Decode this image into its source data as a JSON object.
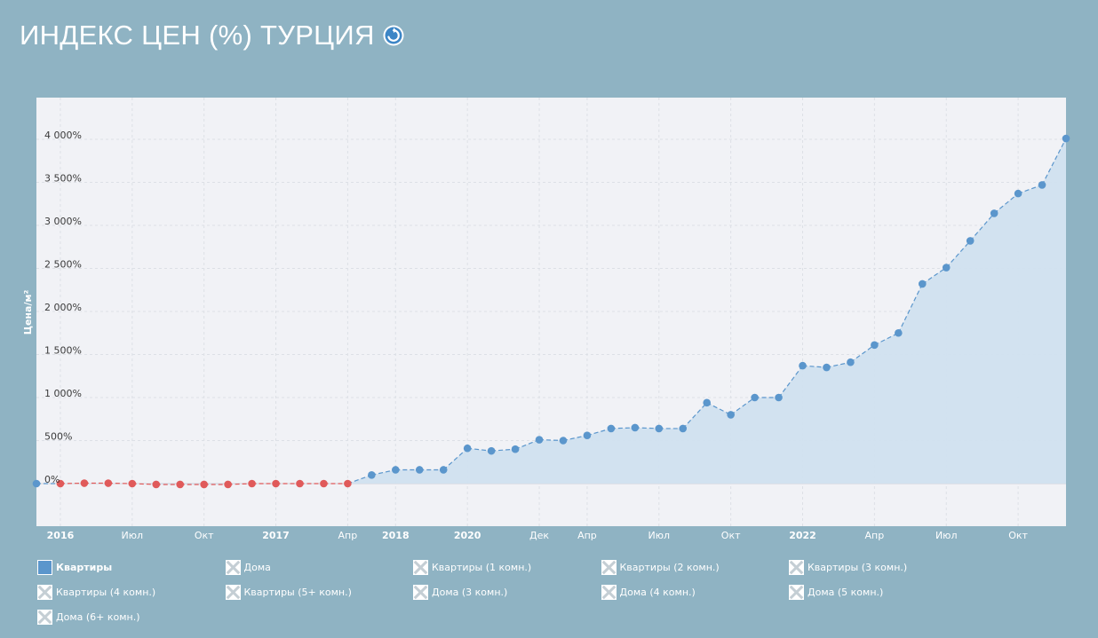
{
  "header": {
    "title": "ИНДЕКС ЦЕН (%) ТУРЦИЯ",
    "refresh_icon": "refresh-icon"
  },
  "chart_data": {
    "type": "line",
    "title": "ИНДЕКС ЦЕН (%) ТУРЦИЯ",
    "xlabel": "",
    "ylabel": "Цена/м²",
    "ylim": [
      -500,
      4500
    ],
    "y_ticks": [
      0,
      500,
      1000,
      1500,
      2000,
      2500,
      3000,
      3500,
      4000
    ],
    "y_tick_labels": [
      "0%",
      "500%",
      "1 000%",
      "1 500%",
      "2 000%",
      "2 500%",
      "3 000%",
      "3 500%",
      "4 000%"
    ],
    "x_tick_labels": [
      {
        "label": "2016",
        "bold": true,
        "i": 1
      },
      {
        "label": "Июл",
        "bold": false,
        "i": 4
      },
      {
        "label": "Окт",
        "bold": false,
        "i": 7
      },
      {
        "label": "2017",
        "bold": true,
        "i": 10
      },
      {
        "label": "Апр",
        "bold": false,
        "i": 13
      },
      {
        "label": "2018",
        "bold": true,
        "i": 15
      },
      {
        "label": "2020",
        "bold": true,
        "i": 18
      },
      {
        "label": "Дек",
        "bold": false,
        "i": 21
      },
      {
        "label": "Апр",
        "bold": false,
        "i": 23
      },
      {
        "label": "Июл",
        "bold": false,
        "i": 26
      },
      {
        "label": "Окт",
        "bold": false,
        "i": 29
      },
      {
        "label": "2022",
        "bold": true,
        "i": 32
      },
      {
        "label": "Апр",
        "bold": false,
        "i": 35
      },
      {
        "label": "Июл",
        "bold": false,
        "i": 38
      },
      {
        "label": "Окт",
        "bold": false,
        "i": 41
      }
    ],
    "grid": true,
    "legend_position": "bottom",
    "negative_color": "#e05a5a",
    "positive_color": "#5b96cc",
    "area_color": "#d0e0ef",
    "series": [
      {
        "name": "Квартиры",
        "values": [
          0,
          0,
          5,
          5,
          0,
          -10,
          -10,
          -10,
          -10,
          0,
          0,
          0,
          0,
          0,
          100,
          160,
          160,
          160,
          410,
          380,
          400,
          510,
          500,
          560,
          640,
          650,
          640,
          640,
          940,
          800,
          1000,
          1000,
          1370,
          1350,
          1410,
          1610,
          1750,
          2320,
          2510,
          2820,
          3140,
          3370,
          3470,
          4010
        ]
      }
    ]
  },
  "legend": {
    "items": [
      {
        "label": "Квартиры",
        "active": true
      },
      {
        "label": "Дома",
        "active": false
      },
      {
        "label": "Квартиры (1 комн.)",
        "active": false
      },
      {
        "label": "Квартиры (2 комн.)",
        "active": false
      },
      {
        "label": "Квартиры (3 комн.)",
        "active": false
      },
      {
        "label": "Квартиры (4 комн.)",
        "active": false
      },
      {
        "label": "Квартиры (5+ комн.)",
        "active": false
      },
      {
        "label": "Дома (3 комн.)",
        "active": false
      },
      {
        "label": "Дома (4 комн.)",
        "active": false
      },
      {
        "label": "Дома (5 комн.)",
        "active": false
      },
      {
        "label": "Дома (6+ комн.)",
        "active": false
      }
    ]
  }
}
